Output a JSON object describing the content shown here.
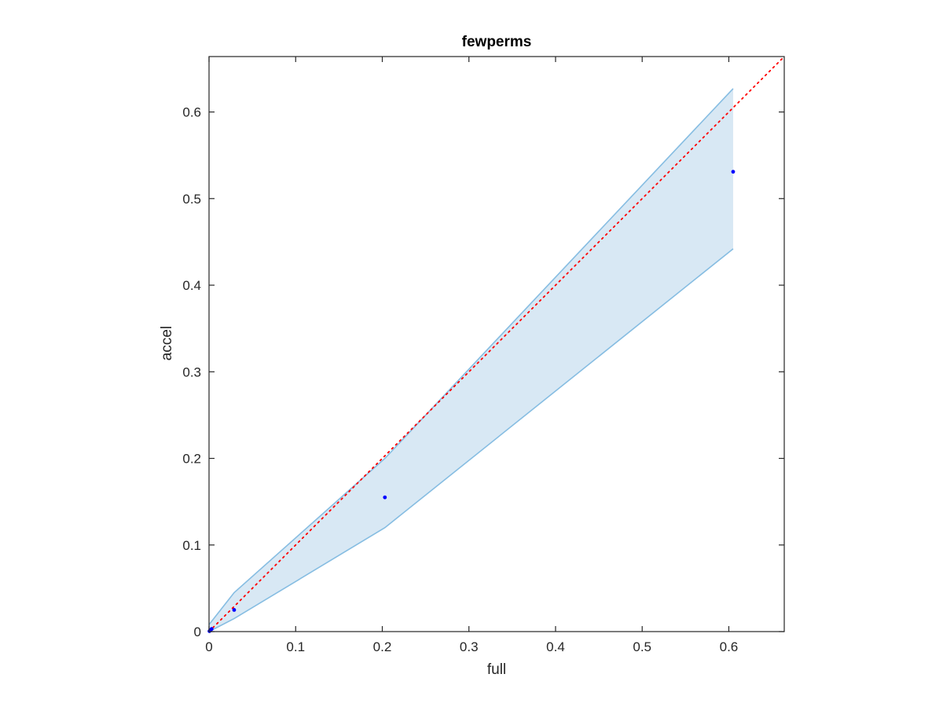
{
  "chart_data": {
    "type": "scatter",
    "title": "fewperms",
    "xlabel": "full",
    "ylabel": "accel",
    "xlim": [
      0,
      0.664
    ],
    "ylim": [
      0,
      0.664
    ],
    "xticks": [
      0,
      0.1,
      0.2,
      0.3,
      0.4,
      0.5,
      0.6
    ],
    "yticks": [
      0,
      0.1,
      0.2,
      0.3,
      0.4,
      0.5,
      0.6
    ],
    "xtick_labels": [
      "0",
      "0.1",
      "0.2",
      "0.3",
      "0.4",
      "0.5",
      "0.6"
    ],
    "ytick_labels": [
      "0",
      "0.1",
      "0.2",
      "0.3",
      "0.4",
      "0.5",
      "0.6"
    ],
    "grid": false,
    "points": {
      "x": [
        0.0005,
        0.002,
        0.003,
        0.029,
        0.203,
        0.605
      ],
      "y": [
        0.0005,
        0.002,
        0.003,
        0.025,
        0.155,
        0.531
      ],
      "color": "#0000ff"
    },
    "band": {
      "x": [
        0,
        0.029,
        0.203,
        0.605
      ],
      "upper": [
        0.008,
        0.045,
        0.2,
        0.627
      ],
      "lower": [
        0,
        0.015,
        0.12,
        0.442
      ],
      "fill_color": "#d8e8f4",
      "edge_color": "#86bde2"
    },
    "reference_line": {
      "x": [
        0,
        0.664
      ],
      "y": [
        0,
        0.664
      ],
      "color": "#ff0000",
      "style": "dotted"
    }
  }
}
